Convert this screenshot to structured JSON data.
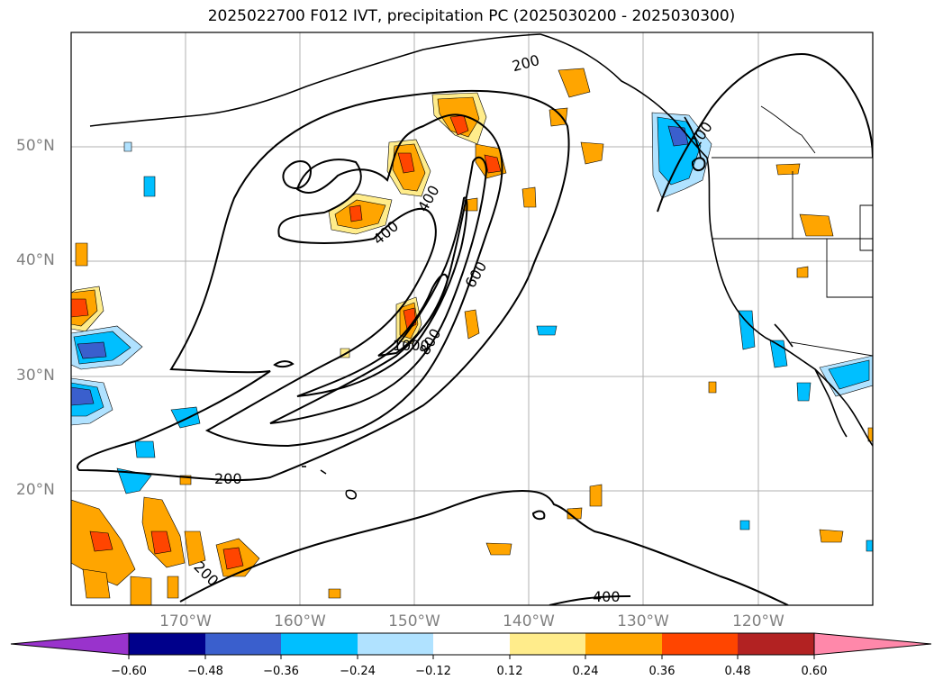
{
  "title": "2025022700 F012 IVT, precipitation PC (2025030200 - 2025030300)",
  "map": {
    "lat_labels": [
      "50°N",
      "40°N",
      "30°N",
      "20°N"
    ],
    "lon_labels": [
      "170°W",
      "160°W",
      "150°W",
      "140°W",
      "130°W",
      "120°W"
    ],
    "gridlines": true,
    "background": "#ffffff",
    "coastline_color": "#000000",
    "ivt_contours": {
      "levels": [
        200,
        400,
        600,
        800,
        1000
      ],
      "labels": [
        "200",
        "200",
        "200",
        "400",
        "400",
        "400",
        "600",
        "800",
        "1000",
        "200"
      ]
    }
  },
  "colorbar": {
    "ticks": [
      "−0.60",
      "−0.48",
      "−0.36",
      "−0.24",
      "−0.12",
      "0.12",
      "0.24",
      "0.36",
      "0.48",
      "0.60"
    ],
    "colors": [
      "#9933cc",
      "#00008b",
      "#3a5fcd",
      "#00bfff",
      "#b0e2ff",
      "#ffffff",
      "#ffec8b",
      "#ffa500",
      "#ff4500",
      "#b22222",
      "#ff88aa"
    ],
    "extend": "both"
  }
}
